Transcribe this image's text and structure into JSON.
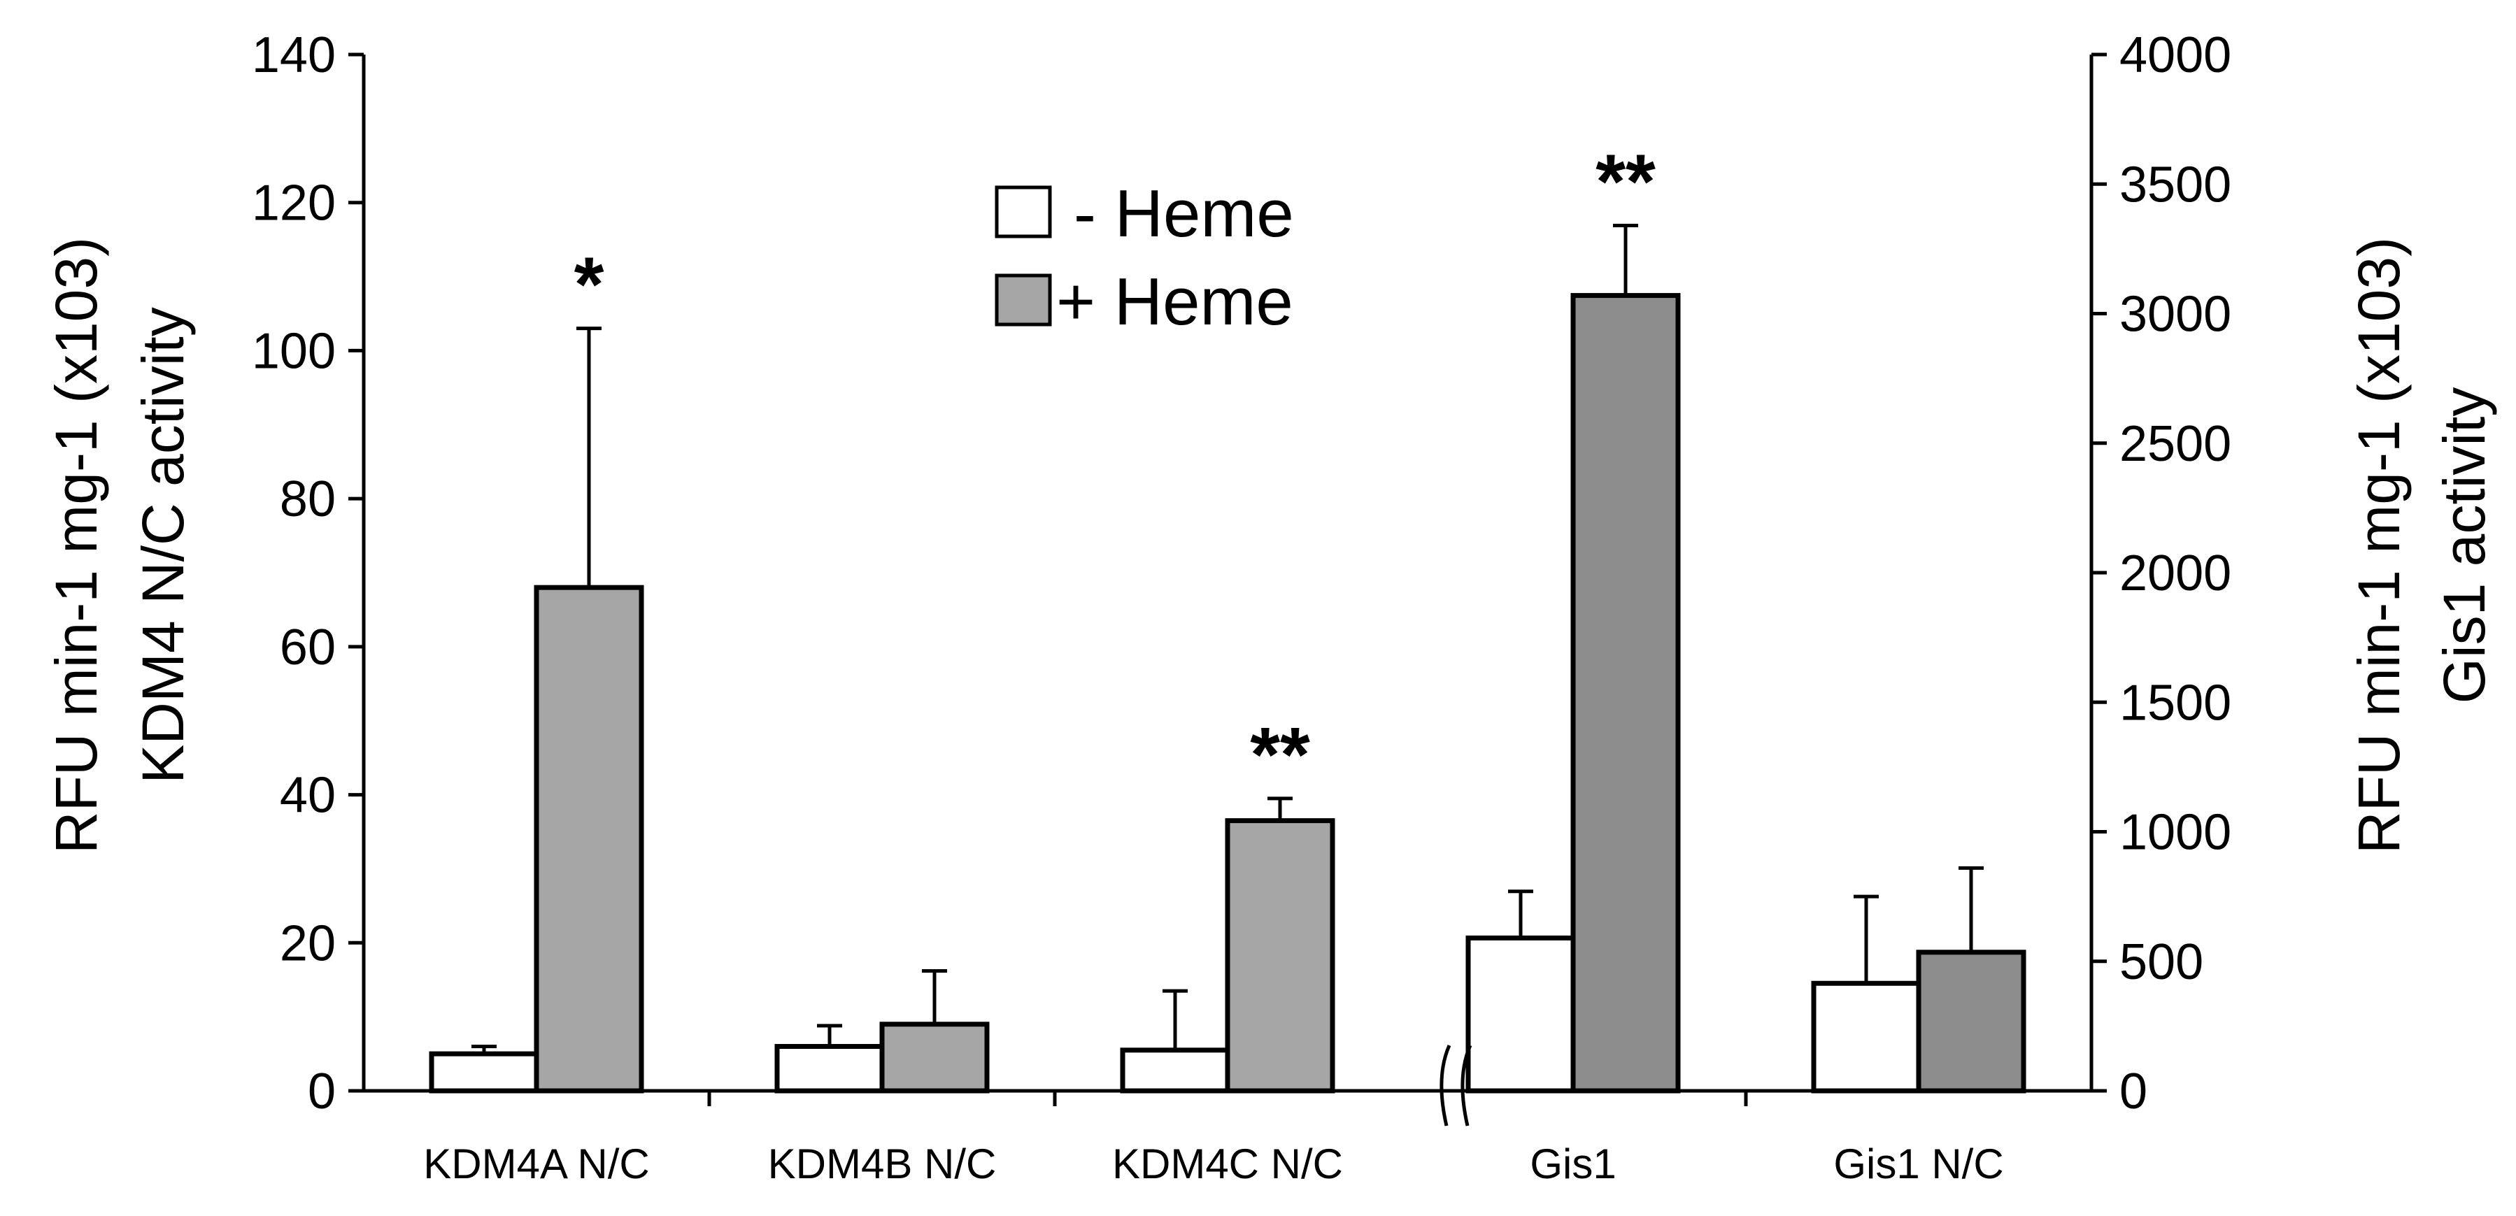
{
  "chart_data": {
    "type": "bar",
    "categories": [
      "KDM4A N/C",
      "KDM4B N/C",
      "KDM4C N/C",
      "Gis1",
      "Gis1 N/C"
    ],
    "left_axis": {
      "title_line1": "RFU min-1 mg-1 (x103)",
      "title_line2": "KDM4 N/C activity",
      "ylim": [
        0,
        140
      ],
      "ticks": [
        0,
        20,
        40,
        60,
        80,
        100,
        120,
        140
      ],
      "applies_to": [
        "KDM4A N/C",
        "KDM4B N/C",
        "KDM4C N/C"
      ]
    },
    "right_axis": {
      "title_line1": "RFU min-1 mg-1 (x103)",
      "title_line2": "Gis1 activity",
      "ylim": [
        0,
        4000
      ],
      "ticks": [
        0,
        500,
        1000,
        1500,
        2000,
        2500,
        3000,
        3500,
        4000
      ],
      "applies_to": [
        "Gis1",
        "Gis1 N/C"
      ]
    },
    "series": [
      {
        "name": "- Heme",
        "color": "#ffffff",
        "values": [
          5,
          6,
          5.5,
          590,
          415
        ],
        "errors": [
          6,
          8.8,
          13.5,
          770,
          750
        ]
      },
      {
        "name": "+ Heme",
        "color": "#a6a6a6",
        "values": [
          68,
          9,
          36.5,
          3070,
          535
        ],
        "errors": [
          103,
          16.2,
          39.5,
          3340,
          860
        ]
      }
    ],
    "significance": [
      {
        "category": "KDM4A N/C",
        "series": "+ Heme",
        "label": "*"
      },
      {
        "category": "KDM4C N/C",
        "series": "+ Heme",
        "label": "**"
      },
      {
        "category": "Gis1",
        "series": "+ Heme",
        "label": "**"
      }
    ],
    "legend_position": "top-center",
    "grid": false,
    "axis_break": "between KDM4C N/C and Gis1"
  }
}
